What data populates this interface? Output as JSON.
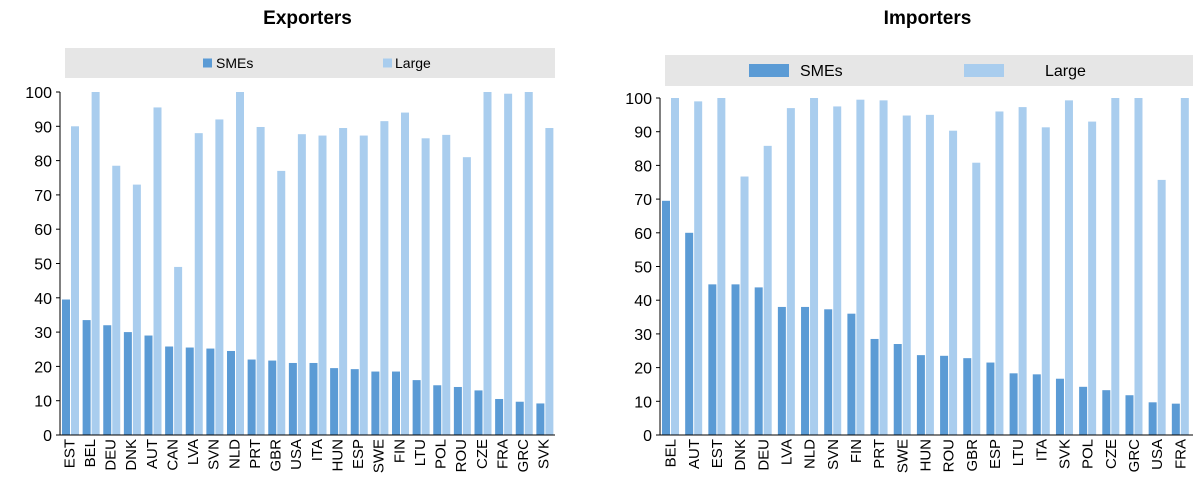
{
  "colors": {
    "smes": "#5b9bd5",
    "large": "#a9cdee",
    "legend_bg": "#e6e6e6",
    "axis": "#000000"
  },
  "chart_data": [
    {
      "type": "bar",
      "title": "Exporters",
      "xlabel": "",
      "ylabel": "",
      "ylim": [
        0,
        100
      ],
      "yticks": [
        0,
        10,
        20,
        30,
        40,
        50,
        60,
        70,
        80,
        90,
        100
      ],
      "legend_position": "top",
      "grid": false,
      "categories": [
        "EST",
        "BEL",
        "DEU",
        "DNK",
        "AUT",
        "CAN",
        "LVA",
        "SVN",
        "NLD",
        "PRT",
        "GBR",
        "USA",
        "ITA",
        "HUN",
        "ESP",
        "SWE",
        "FIN",
        "LTU",
        "POL",
        "ROU",
        "CZE",
        "FRA",
        "GRC",
        "SVK"
      ],
      "series": [
        {
          "name": "SMEs",
          "values": [
            39.5,
            33.5,
            32,
            30,
            29,
            25.8,
            25.5,
            25.2,
            24.5,
            22,
            21.7,
            21,
            21,
            19.5,
            19.2,
            18.5,
            18.5,
            16,
            14.5,
            14,
            13,
            10.5,
            9.7,
            9.2
          ]
        },
        {
          "name": "Large",
          "values": [
            90,
            100,
            78.5,
            73,
            95.5,
            49,
            88,
            92,
            100,
            89.8,
            77,
            87.7,
            87.3,
            89.5,
            87.3,
            91.5,
            94,
            86.5,
            87.5,
            81,
            100,
            99.5,
            100,
            89.5
          ]
        }
      ]
    },
    {
      "type": "bar",
      "title": "Importers",
      "xlabel": "",
      "ylabel": "",
      "ylim": [
        0,
        100
      ],
      "yticks": [
        0,
        10,
        20,
        30,
        40,
        50,
        60,
        70,
        80,
        90,
        100
      ],
      "legend_position": "top",
      "grid": false,
      "categories": [
        "BEL",
        "AUT",
        "EST",
        "DNK",
        "DEU",
        "LVA",
        "NLD",
        "SVN",
        "FIN",
        "PRT",
        "SWE",
        "HUN",
        "ROU",
        "GBR",
        "ESP",
        "LTU",
        "ITA",
        "SVK",
        "POL",
        "CZE",
        "GRC",
        "USA",
        "FRA"
      ],
      "series": [
        {
          "name": "SMEs",
          "values": [
            69.5,
            60,
            44.7,
            44.7,
            43.8,
            38,
            38,
            37.3,
            36,
            28.5,
            27,
            23.7,
            23.5,
            22.8,
            21.5,
            18.3,
            18,
            16.7,
            14.3,
            13.3,
            11.8,
            9.7,
            9.3
          ]
        },
        {
          "name": "Large",
          "values": [
            100,
            99,
            100,
            76.7,
            85.8,
            97,
            100,
            97.5,
            99.5,
            99.3,
            94.8,
            95,
            90.3,
            80.8,
            96,
            97.3,
            91.3,
            99.3,
            93,
            100,
            100,
            75.7,
            100
          ]
        }
      ]
    }
  ]
}
